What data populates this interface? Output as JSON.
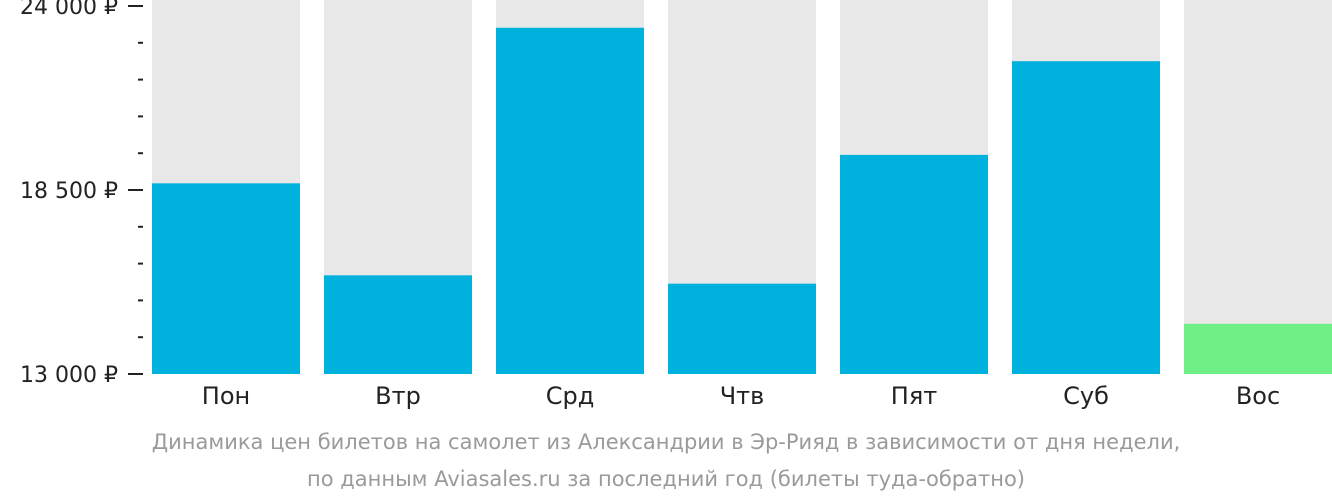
{
  "chart_data": {
    "type": "bar",
    "categories": [
      "Пон",
      "Втр",
      "Срд",
      "Чтв",
      "Пят",
      "Суб",
      "Вос"
    ],
    "values": [
      18700,
      15950,
      23350,
      15700,
      19550,
      22350,
      14500
    ],
    "ylim": [
      13000,
      24000
    ],
    "yticks": [
      {
        "value": 24000,
        "label": "24 000 ₽"
      },
      {
        "value": 18500,
        "label": "18 500 ₽"
      },
      {
        "value": 13000,
        "label": "13 000 ₽"
      }
    ],
    "minor_tick_step": 1100,
    "highlight_index": 6,
    "grid": false
  },
  "colors": {
    "bar": "#00b0dd",
    "bar_highlight": "#6ff086",
    "background_column": "#e8e8e8",
    "text": "#222222",
    "caption": "#9a9a9a"
  },
  "caption": {
    "line1": "Динамика цен билетов на самолет из Александрии в Эр-Рияд в зависимости от дня недели,",
    "line2": "по данным Aviasales.ru за последний год (билеты туда-обратно)"
  }
}
